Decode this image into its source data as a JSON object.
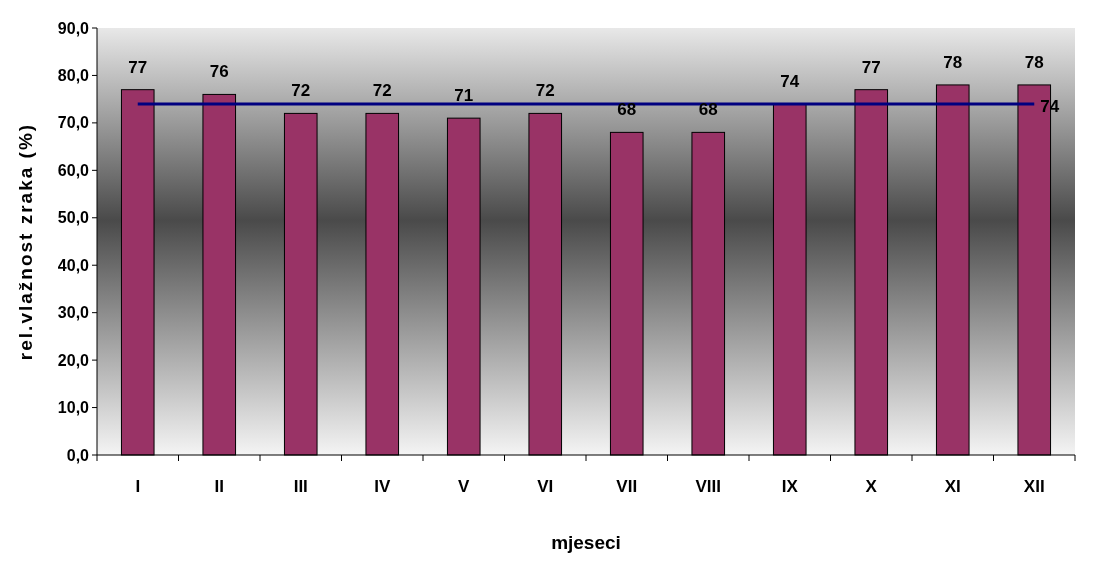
{
  "chart_data": {
    "type": "bar",
    "xlabel": "mjeseci",
    "ylabel": "rel.vlažnost zraka (%)",
    "categories": [
      "I",
      "II",
      "III",
      "IV",
      "V",
      "VI",
      "VII",
      "VIII",
      "IX",
      "X",
      "XI",
      "XII"
    ],
    "values": [
      77,
      76,
      72,
      72,
      71,
      72,
      68,
      68,
      74,
      77,
      78,
      78
    ],
    "color": "#993366",
    "data_labels": true,
    "ylim": [
      0,
      90
    ],
    "yticks": [
      {
        "value": 0,
        "label": "0,0"
      },
      {
        "value": 10,
        "label": "10,0"
      },
      {
        "value": 20,
        "label": "20,0"
      },
      {
        "value": 30,
        "label": "30,0"
      },
      {
        "value": 40,
        "label": "40,0"
      },
      {
        "value": 50,
        "label": "50,0"
      },
      {
        "value": 60,
        "label": "60,0"
      },
      {
        "value": 70,
        "label": "70,0"
      },
      {
        "value": 80,
        "label": "80,0"
      },
      {
        "value": 90,
        "label": "90,0"
      }
    ],
    "ref_lines": [
      {
        "axis": "y",
        "value": 74,
        "label": "74",
        "color": "#000080"
      }
    ]
  }
}
